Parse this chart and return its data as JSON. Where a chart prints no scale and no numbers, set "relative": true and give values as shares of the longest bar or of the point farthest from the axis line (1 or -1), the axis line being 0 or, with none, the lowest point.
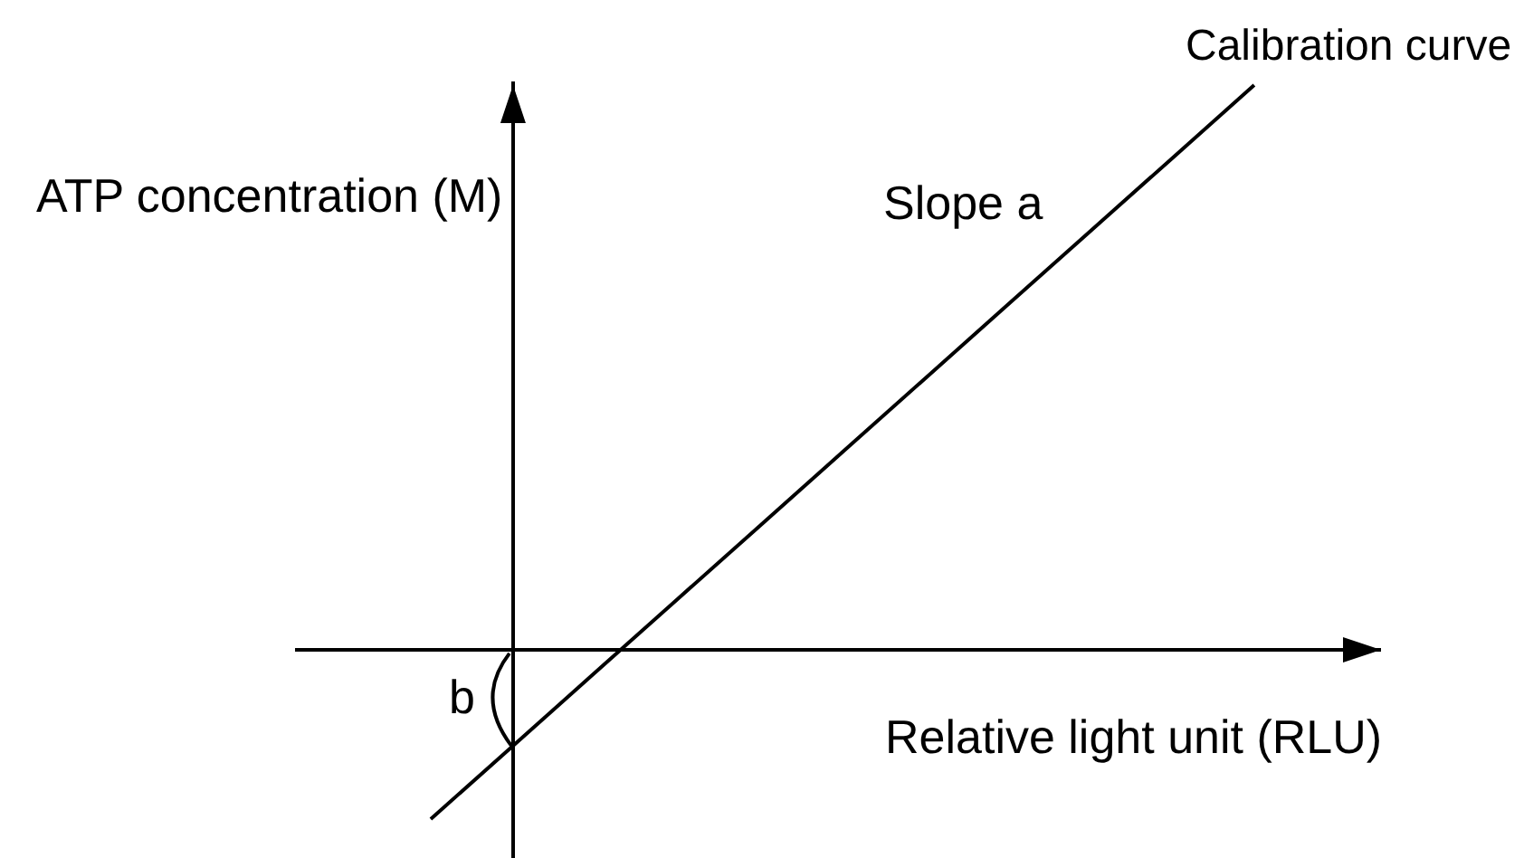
{
  "chart_data": {
    "type": "line",
    "xlabel": "Relative light unit (RLU)",
    "ylabel": "ATP concentration (M)",
    "annotations": [
      "Slope a",
      "b"
    ],
    "categories": [
      null,
      null,
      null,
      null,
      null,
      null,
      null,
      null,
      null,
      null,
      null
    ],
    "series": [
      {
        "name": "Calibration curve",
        "color": "#000000",
        "values": [
          -0.3,
          -0.17,
          -0.04,
          0.09,
          0.22,
          0.35,
          0.48,
          0.61,
          0.74,
          0.87,
          1.0
        ]
      }
    ],
    "relative": true,
    "legend": false,
    "marker": "none",
    "line_style": "solid"
  }
}
